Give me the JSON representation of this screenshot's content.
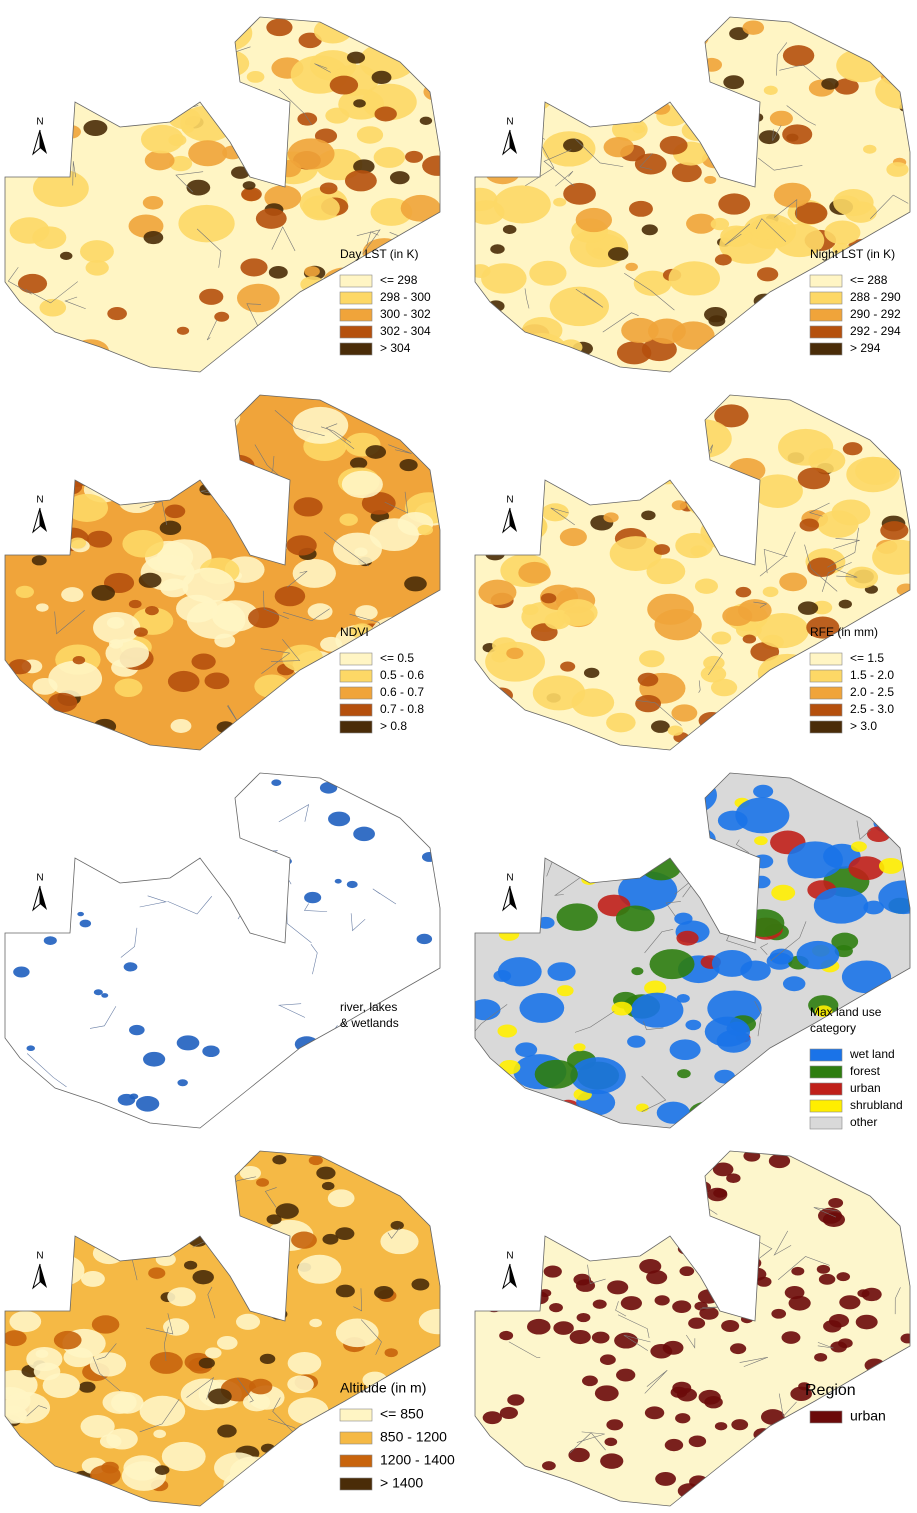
{
  "panels": [
    {
      "north": "N",
      "title": [
        "Day LST (in K)"
      ],
      "base_color": "#fff5c4",
      "items": [
        {
          "label": "<= 298",
          "color": "#fff5c4"
        },
        {
          "label": "298 - 300",
          "color": "#fdd866"
        },
        {
          "label": "300 - 302",
          "color": "#f0a43a"
        },
        {
          "label": "302 - 304",
          "color": "#b5500d"
        },
        {
          "label": "> 304",
          "color": "#4a2c08"
        }
      ]
    },
    {
      "north": "N",
      "title": [
        "Night LST (in K)"
      ],
      "base_color": "#fff5c4",
      "items": [
        {
          "label": "<= 288",
          "color": "#fff5c4"
        },
        {
          "label": "288 - 290",
          "color": "#fdd866"
        },
        {
          "label": "290 - 292",
          "color": "#f0a43a"
        },
        {
          "label": "292 - 294",
          "color": "#b5500d"
        },
        {
          "label": "> 294",
          "color": "#4a2c08"
        }
      ]
    },
    {
      "north": "N",
      "title": [
        "NDVI"
      ],
      "base_color": "#f0a43a",
      "items": [
        {
          "label": "<= 0.5",
          "color": "#fff5c4"
        },
        {
          "label": "0.5 - 0.6",
          "color": "#fdd866"
        },
        {
          "label": "0.6 - 0.7",
          "color": "#f0a43a"
        },
        {
          "label": "0.7 - 0.8",
          "color": "#b5500d"
        },
        {
          "label": "> 0.8",
          "color": "#4a2c08"
        }
      ]
    },
    {
      "north": "N",
      "title": [
        "RFE (in mm)"
      ],
      "base_color": "#fff5c4",
      "items": [
        {
          "label": "<= 1.5",
          "color": "#fff5c4"
        },
        {
          "label": "1.5 - 2.0",
          "color": "#fdd866"
        },
        {
          "label": "2.0 - 2.5",
          "color": "#f0a43a"
        },
        {
          "label": "2.5 - 3.0",
          "color": "#b5500d"
        },
        {
          "label": "> 3.0",
          "color": "#4a2c08"
        }
      ]
    },
    {
      "north": "N",
      "title": [
        "river, lakes",
        "& wetlands"
      ],
      "base_color": "#ffffff",
      "water_color": "#1f5fbf",
      "items": []
    },
    {
      "north": "N",
      "title": [
        "Max land use",
        "category"
      ],
      "base_color": "#d9d9d9",
      "items": [
        {
          "label": "wet land",
          "color": "#1a73e8"
        },
        {
          "label": "forest",
          "color": "#2e7d0f"
        },
        {
          "label": "urban",
          "color": "#c0201a"
        },
        {
          "label": "shrubland",
          "color": "#ffee00"
        },
        {
          "label": "other",
          "color": "#d9d9d9"
        }
      ]
    },
    {
      "north": "N",
      "title": [
        "Altitude (in m)"
      ],
      "base_color": "#f5b945",
      "items": [
        {
          "label": "<= 850",
          "color": "#fff5c4"
        },
        {
          "label": "850 - 1200",
          "color": "#f5b945"
        },
        {
          "label": "1200 - 1400",
          "color": "#c8640c"
        },
        {
          "label": "> 1400",
          "color": "#4a2c08"
        }
      ]
    },
    {
      "north": "N",
      "title": [
        "Region"
      ],
      "base_color": "#fdf6cc",
      "items": [
        {
          "label": "urban",
          "color": "#6b0a0a"
        }
      ]
    }
  ]
}
